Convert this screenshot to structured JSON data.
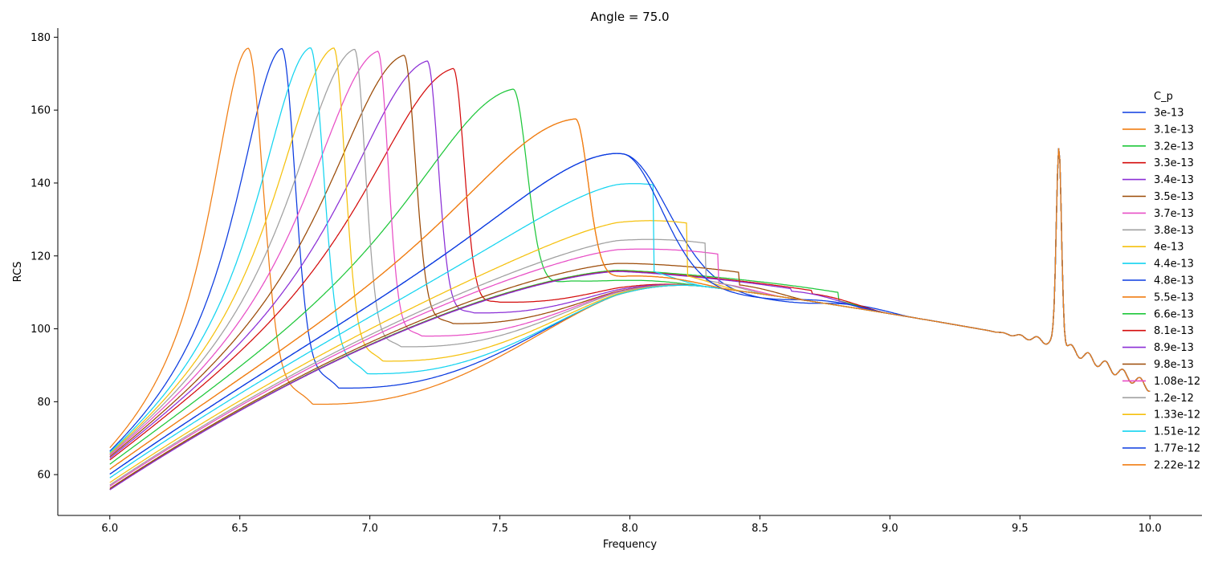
{
  "chart_data": {
    "type": "line",
    "title": "Angle = 75.0",
    "xlabel": "Frequency",
    "ylabel": "RCS",
    "xlim": [
      5.8,
      10.2
    ],
    "ylim": [
      48.8,
      182.5
    ],
    "xticks": [
      6.0,
      6.5,
      7.0,
      7.5,
      8.0,
      8.5,
      9.0,
      9.5,
      10.0
    ],
    "yticks": [
      60,
      80,
      100,
      120,
      140,
      160,
      180
    ],
    "grid": false,
    "legend": {
      "title": "C_p",
      "placement": "right"
    },
    "series": [
      {
        "name": "3e-13",
        "color": "#0b3be0",
        "peak": [
          6.66,
          176
        ],
        "dip": [
          6.88,
          83
        ]
      },
      {
        "name": "3.1e-13",
        "color": "#f07d12",
        "peak": [
          6.53,
          176
        ],
        "dip": [
          6.78,
          78.5
        ]
      },
      {
        "name": "3.2e-13",
        "color": "#1ec73a",
        "peak": [
          7.55,
          165.5
        ],
        "dip": [
          7.78,
          113
        ]
      },
      {
        "name": "3.3e-13",
        "color": "#d40c0c",
        "peak": [
          7.32,
          171
        ],
        "dip": [
          7.5,
          107
        ]
      },
      {
        "name": "3.4e-13",
        "color": "#8b2fd6",
        "peak": [
          7.22,
          173
        ],
        "dip": [
          7.4,
          104
        ]
      },
      {
        "name": "3.5e-13",
        "color": "#9b4a06",
        "peak": [
          7.13,
          174.5
        ],
        "dip": [
          7.32,
          101
        ]
      },
      {
        "name": "3.7e-13",
        "color": "#e84fc6",
        "peak": [
          7.03,
          175.5
        ],
        "dip": [
          7.2,
          97.5
        ]
      },
      {
        "name": "3.8e-13",
        "color": "#a0a0a0",
        "peak": [
          6.94,
          176
        ],
        "dip": [
          7.12,
          94.5
        ]
      },
      {
        "name": "4e-13",
        "color": "#f5c10e",
        "peak": [
          6.86,
          176.3
        ],
        "dip": [
          7.05,
          90.5
        ]
      },
      {
        "name": "4.4e-13",
        "color": "#14d4f0",
        "peak": [
          6.77,
          176.3
        ],
        "dip": [
          6.99,
          87
        ]
      },
      {
        "name": "4.8e-13",
        "color": "#0b3be0",
        "peak": [
          7.97,
          148
        ],
        "dip": [
          8.7,
          107
        ]
      },
      {
        "name": "5.5e-13",
        "color": "#f07d12",
        "peak": [
          7.79,
          157.5
        ],
        "dip": [
          8.0,
          114.5
        ]
      },
      {
        "name": "6.6e-13",
        "color": "#1ec73a",
        "peak": [
          8.8,
          110
        ],
        "dip": [
          8.6,
          109
        ]
      },
      {
        "name": "8.1e-13",
        "color": "#d40c0c",
        "peak": [
          8.7,
          110.5
        ],
        "dip": [
          8.6,
          110
        ]
      },
      {
        "name": "8.9e-13",
        "color": "#8b2fd6",
        "peak": [
          8.62,
          111
        ],
        "dip": [
          8.55,
          110.5
        ]
      },
      {
        "name": "9.8e-13",
        "color": "#9b4a06",
        "peak": [
          8.42,
          115.5
        ],
        "dip": [
          8.3,
          112.5
        ]
      },
      {
        "name": "1.08e-12",
        "color": "#e84fc6",
        "peak": [
          8.34,
          120.5
        ],
        "dip": [
          8.2,
          113
        ]
      },
      {
        "name": "1.2e-12",
        "color": "#a0a0a0",
        "peak": [
          8.29,
          123.5
        ],
        "dip": [
          8.15,
          114
        ]
      },
      {
        "name": "1.33e-12",
        "color": "#f5c10e",
        "peak": [
          8.22,
          129
        ],
        "dip": [
          8.05,
          116
        ]
      },
      {
        "name": "1.51e-12",
        "color": "#14d4f0",
        "peak": [
          8.09,
          139.5
        ],
        "dip": [
          7.9,
          118
        ]
      },
      {
        "name": "1.77e-12",
        "color": "#0b3be0",
        "peak": [
          7.97,
          148
        ],
        "dip": [
          8.6,
          108
        ]
      },
      {
        "name": "2.22e-12",
        "color": "#f07d12",
        "peak": [
          7.79,
          157.5
        ],
        "dip": [
          8.0,
          114.5
        ]
      }
    ],
    "common_features": {
      "start_x": 6.0,
      "end_x": 10.0,
      "spike": [
        9.65,
        150
      ],
      "broad_hump": [
        7.95,
        114
      ],
      "value_at_9_5": 96,
      "value_at_10": 84
    }
  }
}
